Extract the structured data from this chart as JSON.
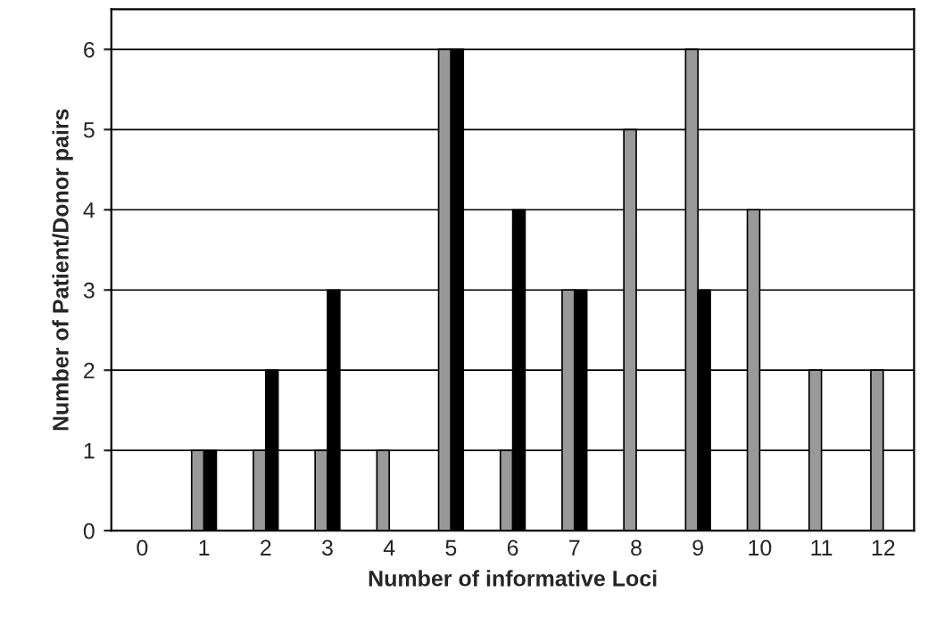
{
  "chart_data": {
    "type": "bar",
    "xlabel": "Number of informative Loci",
    "ylabel": "Number of Patient/Donor pairs",
    "categories": [
      "0",
      "1",
      "2",
      "3",
      "4",
      "5",
      "6",
      "7",
      "8",
      "9",
      "10",
      "11",
      "12"
    ],
    "series": [
      {
        "color": "#999999",
        "values": [
          0,
          1,
          1,
          1,
          1,
          6,
          1,
          3,
          5,
          6,
          4,
          2,
          2
        ]
      },
      {
        "color": "#000000",
        "values": [
          0,
          1,
          2,
          3,
          0,
          6,
          4,
          3,
          0,
          3,
          0,
          0,
          0
        ]
      }
    ],
    "ylim": [
      0,
      6.5
    ],
    "yticks": [
      0,
      1,
      2,
      3,
      4,
      5,
      6
    ],
    "grid": "y"
  }
}
